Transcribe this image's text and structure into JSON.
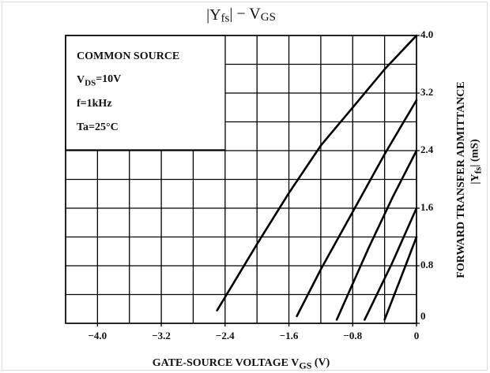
{
  "chart_data": {
    "type": "line",
    "title": [
      "|Y",
      "fs",
      "|  −  V",
      "GS"
    ],
    "xlabel": [
      "GATE-SOURCE VOLTAGE   V",
      "GS",
      "   (V)"
    ],
    "ylabel": [
      "FORWARD TRANSFER ADMITTANCE"
    ],
    "ylabel2": [
      "|Y",
      "fs",
      "|   (mS)"
    ],
    "annotations": [
      [
        "COMMON SOURCE"
      ],
      [
        "V",
        "DS",
        "=10V"
      ],
      [
        "f=1kHz"
      ],
      [
        "Ta=25°C"
      ]
    ],
    "xlim": [
      -4.4,
      0
    ],
    "ylim": [
      0,
      4
    ],
    "xticks": [
      {
        "value": -4,
        "label": "−4.0"
      },
      {
        "value": -3.2,
        "label": "−3.2"
      },
      {
        "value": -2.4,
        "label": "−2.4"
      },
      {
        "value": -1.6,
        "label": "−1.6"
      },
      {
        "value": -0.8,
        "label": "−0.8"
      },
      0
    ],
    "yticks": [
      0,
      {
        "value": 0.8,
        "label": "0.8"
      },
      {
        "value": 1.6,
        "label": "1.6"
      },
      {
        "value": 2.4,
        "label": "2.4"
      },
      {
        "value": 3.2,
        "label": "3.2"
      },
      {
        "value": 4,
        "label": "4.0"
      }
    ],
    "xgrid": [
      -4.4,
      -4,
      -3.6,
      -3.2,
      -2.8,
      -2.4,
      -2,
      -1.6,
      -1.2,
      -0.8,
      -0.4,
      0
    ],
    "ygrid": [
      0,
      0.4,
      0.8,
      1.2,
      1.6,
      2,
      2.4,
      2.8,
      3.2,
      3.6,
      4
    ],
    "grid": true,
    "series": [
      {
        "color": "#000000",
        "x": [
          -2.5,
          -2.0,
          -1.6,
          -1.2,
          -0.8,
          -0.4,
          0
        ],
        "values": [
          0.18,
          1.1,
          1.81,
          2.47,
          3.0,
          3.53,
          4.0
        ]
      },
      {
        "color": "#000000",
        "x": [
          -1.5,
          -1.2,
          -0.8,
          -0.4,
          0
        ],
        "values": [
          0.1,
          0.75,
          1.55,
          2.35,
          3.1
        ]
      },
      {
        "color": "#000000",
        "x": [
          -1.0,
          -0.6,
          -0.3,
          0
        ],
        "values": [
          0.05,
          1.05,
          1.75,
          2.4
        ]
      },
      {
        "color": "#000000",
        "x": [
          -0.65,
          -0.3,
          0
        ],
        "values": [
          0.05,
          0.85,
          1.6
        ]
      },
      {
        "color": "#000000",
        "x": [
          -0.4,
          -0.2,
          0
        ],
        "values": [
          0.05,
          0.62,
          1.2
        ]
      }
    ]
  }
}
